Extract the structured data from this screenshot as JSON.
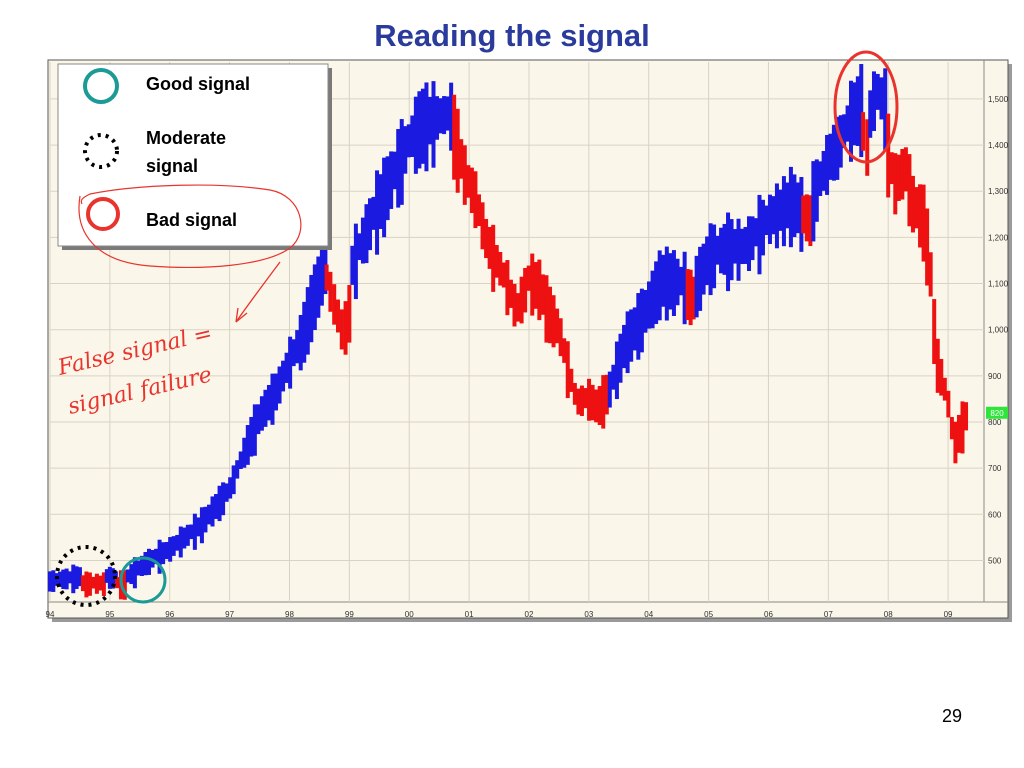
{
  "slide": {
    "title": "Reading the signal",
    "page_number": "29"
  },
  "legend": {
    "good": "Good signal",
    "moderate_line1": "Moderate",
    "moderate_line2": "signal",
    "bad": "Bad signal"
  },
  "annotation": {
    "line1": "False signal =",
    "line2": "signal failure"
  },
  "colors": {
    "up_bar": "#1a1ae0",
    "down_bar": "#ee1111",
    "good_circle": "#1b9a96",
    "bad_circle": "#e8342c",
    "moderate_circle": "#000000",
    "title": "#2a3b9c",
    "price_marker": "#2ee63a"
  },
  "chart_data": {
    "type": "bar",
    "style": "price-bars-colored-by-signal",
    "xlim": [
      1994.0,
      2009.6
    ],
    "ylim": [
      410,
      1580
    ],
    "x_ticks": [
      "94",
      "95",
      "96",
      "97",
      "98",
      "99",
      "00",
      "01",
      "02",
      "03",
      "04",
      "05",
      "06",
      "07",
      "08",
      "09"
    ],
    "y_ticks": [
      500,
      600,
      700,
      800,
      900,
      "1,000",
      "1,100",
      "1,200",
      "1,300",
      "1,400",
      "1,500"
    ],
    "y_tick_values": [
      500,
      600,
      700,
      800,
      900,
      1000,
      1100,
      1200,
      1300,
      1400,
      1500
    ],
    "current_price_label": "820",
    "current_price": 820,
    "grid": true,
    "segments": [
      {
        "signal": "up",
        "points": [
          [
            1994.0,
            460
          ],
          [
            1994.5,
            470
          ]
        ]
      },
      {
        "signal": "down",
        "points": [
          [
            1994.55,
            455
          ],
          [
            1994.9,
            455
          ]
        ]
      },
      {
        "signal": "up",
        "points": [
          [
            1994.95,
            470
          ],
          [
            1995.1,
            465
          ]
        ]
      },
      {
        "signal": "down",
        "points": [
          [
            1995.12,
            455
          ],
          [
            1995.25,
            455
          ]
        ]
      },
      {
        "signal": "up",
        "points": [
          [
            1995.3,
            470
          ],
          [
            1995.6,
            500
          ],
          [
            1996.0,
            530
          ],
          [
            1996.5,
            580
          ],
          [
            1997.0,
            660
          ],
          [
            1997.3,
            760
          ],
          [
            1997.5,
            820
          ],
          [
            1997.8,
            880
          ],
          [
            1998.0,
            940
          ],
          [
            1998.2,
            990
          ],
          [
            1998.4,
            1080
          ],
          [
            1998.6,
            1150
          ]
        ]
      },
      {
        "signal": "down",
        "points": [
          [
            1998.62,
            1120
          ],
          [
            1998.9,
            1000
          ],
          [
            1999.0,
            1050
          ]
        ]
      },
      {
        "signal": "up",
        "points": [
          [
            1999.05,
            1150
          ],
          [
            1999.4,
            1260
          ],
          [
            1999.7,
            1340
          ],
          [
            1999.85,
            1380
          ],
          [
            2000.0,
            1420
          ],
          [
            2000.2,
            1460
          ],
          [
            2000.7,
            1480
          ]
        ]
      },
      {
        "signal": "down",
        "points": [
          [
            2000.75,
            1440
          ],
          [
            2000.95,
            1340
          ],
          [
            2001.1,
            1300
          ],
          [
            2001.3,
            1200
          ],
          [
            2001.6,
            1120
          ],
          [
            2001.8,
            1050
          ],
          [
            2002.0,
            1120
          ],
          [
            2002.2,
            1100
          ],
          [
            2002.3,
            1060
          ],
          [
            2002.5,
            1010
          ],
          [
            2002.7,
            900
          ],
          [
            2002.8,
            850
          ],
          [
            2003.0,
            860
          ],
          [
            2003.15,
            840
          ],
          [
            2003.3,
            870
          ]
        ]
      },
      {
        "signal": "up",
        "points": [
          [
            2003.35,
            880
          ],
          [
            2003.6,
            980
          ],
          [
            2003.9,
            1040
          ],
          [
            2004.1,
            1090
          ],
          [
            2004.2,
            1120
          ],
          [
            2004.4,
            1120
          ],
          [
            2004.6,
            1110
          ]
        ]
      },
      {
        "signal": "down",
        "points": [
          [
            2004.65,
            1090
          ],
          [
            2004.75,
            1080
          ]
        ]
      },
      {
        "signal": "up",
        "points": [
          [
            2004.8,
            1110
          ],
          [
            2005.0,
            1170
          ],
          [
            2005.3,
            1190
          ],
          [
            2005.6,
            1190
          ],
          [
            2006.0,
            1250
          ],
          [
            2006.4,
            1290
          ],
          [
            2006.55,
            1270
          ]
        ]
      },
      {
        "signal": "down",
        "points": [
          [
            2006.58,
            1260
          ],
          [
            2006.7,
            1250
          ]
        ]
      },
      {
        "signal": "up",
        "points": [
          [
            2006.75,
            1300
          ],
          [
            2007.0,
            1380
          ],
          [
            2007.2,
            1420
          ],
          [
            2007.4,
            1480
          ],
          [
            2007.55,
            1500
          ]
        ]
      },
      {
        "signal": "down",
        "points": [
          [
            2007.58,
            1440
          ],
          [
            2007.65,
            1410
          ]
        ]
      },
      {
        "signal": "up",
        "points": [
          [
            2007.7,
            1480
          ],
          [
            2007.8,
            1530
          ],
          [
            2007.95,
            1500
          ]
        ]
      },
      {
        "signal": "down",
        "points": [
          [
            2008.0,
            1400
          ],
          [
            2008.1,
            1330
          ],
          [
            2008.3,
            1360
          ],
          [
            2008.4,
            1290
          ],
          [
            2008.6,
            1250
          ],
          [
            2008.7,
            1150
          ],
          [
            2008.8,
            950
          ],
          [
            2009.0,
            850
          ],
          [
            2009.1,
            760
          ],
          [
            2009.2,
            790
          ],
          [
            2009.3,
            820
          ]
        ]
      }
    ]
  }
}
